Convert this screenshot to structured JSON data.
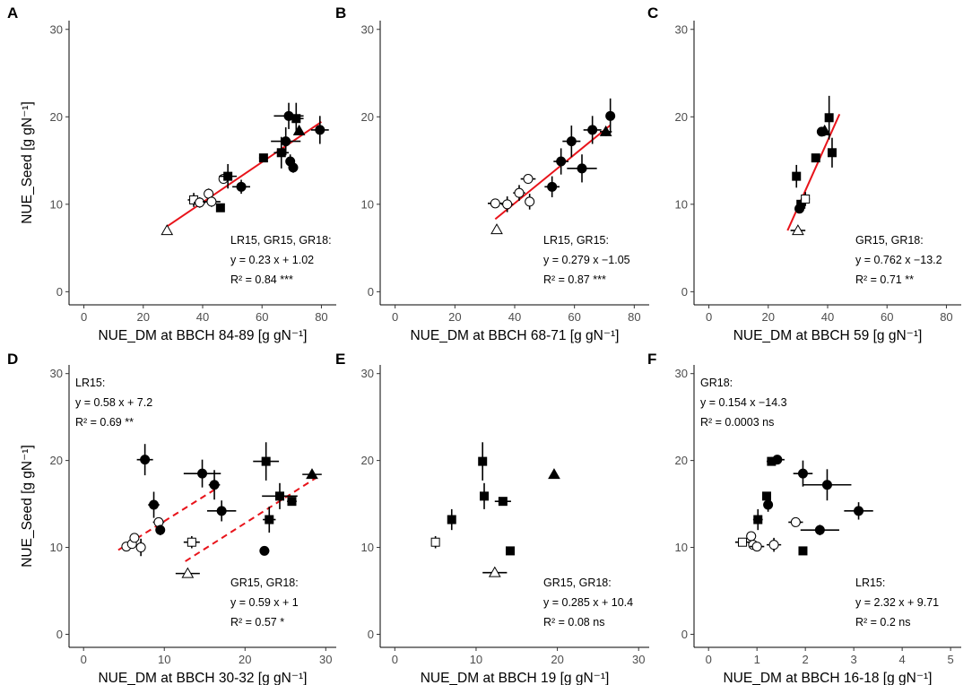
{
  "chart_data": [
    {
      "panel": "A",
      "type": "scatter",
      "xlabel": "NUE_DM at BBCH 84-89 [g gN⁻¹]",
      "ylabel": "NUE_Seed [g gN⁻¹]",
      "xlim": [
        -5,
        85
      ],
      "ylim": [
        -1.5,
        31
      ],
      "xticks": [
        0,
        20,
        40,
        60,
        80
      ],
      "yticks": [
        0,
        10,
        20,
        30
      ],
      "points": [
        {
          "x": 28,
          "y": 7.0,
          "xerr": 0,
          "yerr": 0,
          "shape": "triangle",
          "fill": "open"
        },
        {
          "x": 37,
          "y": 10.5,
          "xerr": 2,
          "yerr": 0.8,
          "shape": "square",
          "fill": "open"
        },
        {
          "x": 39,
          "y": 10.2,
          "xerr": 2,
          "yerr": 0.6,
          "shape": "circle",
          "fill": "open"
        },
        {
          "x": 42,
          "y": 11.2,
          "xerr": 1.5,
          "yerr": 0.6,
          "shape": "circle",
          "fill": "open"
        },
        {
          "x": 43,
          "y": 10.3,
          "xerr": 3,
          "yerr": 0.6,
          "shape": "circle",
          "fill": "open"
        },
        {
          "x": 46,
          "y": 9.6,
          "xerr": 1,
          "yerr": 0.4,
          "shape": "square",
          "fill": "filled"
        },
        {
          "x": 47,
          "y": 12.9,
          "xerr": 1.5,
          "yerr": 0.4,
          "shape": "circle",
          "fill": "open"
        },
        {
          "x": 48.5,
          "y": 13.2,
          "xerr": 3,
          "yerr": 1.4,
          "shape": "square",
          "fill": "filled"
        },
        {
          "x": 53,
          "y": 12.0,
          "xerr": 3,
          "yerr": 0.8,
          "shape": "circle",
          "fill": "filled"
        },
        {
          "x": 60.5,
          "y": 15.3,
          "xerr": 1.5,
          "yerr": 0.4,
          "shape": "square",
          "fill": "filled"
        },
        {
          "x": 66.5,
          "y": 15.9,
          "xerr": 2.5,
          "yerr": 1.8,
          "shape": "square",
          "fill": "filled"
        },
        {
          "x": 68,
          "y": 17.2,
          "xerr": 5,
          "yerr": 1.6,
          "shape": "circle",
          "fill": "filled"
        },
        {
          "x": 69,
          "y": 20.1,
          "xerr": 5,
          "yerr": 1.5,
          "shape": "circle",
          "fill": "filled"
        },
        {
          "x": 69.5,
          "y": 14.9,
          "xerr": 1.5,
          "yerr": 0.8,
          "shape": "circle",
          "fill": "filled"
        },
        {
          "x": 70.5,
          "y": 14.2,
          "xerr": 1.5,
          "yerr": 0.6,
          "shape": "circle",
          "fill": "filled"
        },
        {
          "x": 71.5,
          "y": 19.8,
          "xerr": 2.5,
          "yerr": 1.8,
          "shape": "square",
          "fill": "filled"
        },
        {
          "x": 72.5,
          "y": 18.4,
          "xerr": 1,
          "yerr": 0.5,
          "shape": "triangle",
          "fill": "filled"
        },
        {
          "x": 79.5,
          "y": 18.5,
          "xerr": 3,
          "yerr": 1.6,
          "shape": "circle",
          "fill": "filled"
        }
      ],
      "fit_lines": [
        {
          "x": [
            28,
            80
          ],
          "y": [
            7.46,
            19.42
          ],
          "style": "solid"
        }
      ],
      "annotations": [
        {
          "lines": [
            "LR15, GR15, GR18:",
            "y = 0.23 x + 1.02",
            "R² = 0.84 ***"
          ],
          "pos": [
            1,
            5
          ]
        }
      ]
    },
    {
      "panel": "B",
      "type": "scatter",
      "xlabel": "NUE_DM at BBCH 68-71 [g gN⁻¹]",
      "ylabel": "",
      "xlim": [
        -5,
        85
      ],
      "ylim": [
        -1.5,
        31
      ],
      "xticks": [
        0,
        20,
        40,
        60,
        80
      ],
      "yticks": [
        0,
        10,
        20,
        30
      ],
      "points": [
        {
          "x": 33.5,
          "y": 10.1,
          "xerr": 2.5,
          "yerr": 0.5,
          "shape": "circle",
          "fill": "open"
        },
        {
          "x": 34,
          "y": 7.1,
          "xerr": 0,
          "yerr": 0,
          "shape": "triangle",
          "fill": "open"
        },
        {
          "x": 37.5,
          "y": 10.0,
          "xerr": 2,
          "yerr": 0.9,
          "shape": "circle",
          "fill": "open"
        },
        {
          "x": 41.5,
          "y": 11.3,
          "xerr": 2,
          "yerr": 0.9,
          "shape": "circle",
          "fill": "open"
        },
        {
          "x": 44.5,
          "y": 12.9,
          "xerr": 2.5,
          "yerr": 0.5,
          "shape": "circle",
          "fill": "open"
        },
        {
          "x": 45,
          "y": 10.3,
          "xerr": 1.5,
          "yerr": 0.9,
          "shape": "circle",
          "fill": "open"
        },
        {
          "x": 52.5,
          "y": 12.0,
          "xerr": 2.5,
          "yerr": 1.2,
          "shape": "circle",
          "fill": "filled"
        },
        {
          "x": 55.5,
          "y": 14.9,
          "xerr": 2.5,
          "yerr": 1.5,
          "shape": "circle",
          "fill": "filled"
        },
        {
          "x": 59,
          "y": 17.2,
          "xerr": 3,
          "yerr": 1.8,
          "shape": "circle",
          "fill": "filled"
        },
        {
          "x": 62.5,
          "y": 14.1,
          "xerr": 5,
          "yerr": 1.6,
          "shape": "circle",
          "fill": "filled"
        },
        {
          "x": 66,
          "y": 18.5,
          "xerr": 3,
          "yerr": 1.6,
          "shape": "circle",
          "fill": "filled"
        },
        {
          "x": 70.5,
          "y": 18.3,
          "xerr": 2,
          "yerr": 0.5,
          "shape": "triangle",
          "fill": "filled"
        },
        {
          "x": 72,
          "y": 20.1,
          "xerr": 0.8,
          "yerr": 2,
          "shape": "circle",
          "fill": "filled"
        }
      ],
      "fit_lines": [
        {
          "x": [
            33.5,
            72
          ],
          "y": [
            8.3,
            19.04
          ],
          "style": "solid"
        }
      ],
      "annotations": [
        {
          "lines": [
            "LR15, GR15:",
            "y = 0.279 x −1.05",
            "R² = 0.87 ***"
          ],
          "pos": [
            1,
            5
          ]
        }
      ]
    },
    {
      "panel": "C",
      "type": "scatter",
      "xlabel": "NUE_DM at BBCH 59 [g gN⁻¹]",
      "ylabel": "",
      "xlim": [
        -5,
        85
      ],
      "ylim": [
        -1.5,
        31
      ],
      "xticks": [
        0,
        20,
        40,
        60,
        80
      ],
      "yticks": [
        0,
        10,
        20,
        30
      ],
      "points": [
        {
          "x": 29.5,
          "y": 13.2,
          "xerr": 0.5,
          "yerr": 1.3,
          "shape": "square",
          "fill": "filled"
        },
        {
          "x": 30,
          "y": 7.0,
          "xerr": 2.5,
          "yerr": 0.3,
          "shape": "triangle",
          "fill": "open"
        },
        {
          "x": 30.5,
          "y": 9.5,
          "xerr": 0.5,
          "yerr": 0.4,
          "shape": "circle",
          "fill": "filled"
        },
        {
          "x": 31,
          "y": 10.0,
          "xerr": 0.5,
          "yerr": 0.4,
          "shape": "square",
          "fill": "filled"
        },
        {
          "x": 32.5,
          "y": 10.6,
          "xerr": 1.5,
          "yerr": 0.8,
          "shape": "square",
          "fill": "open"
        },
        {
          "x": 36,
          "y": 15.3,
          "xerr": 0.8,
          "yerr": 0.4,
          "shape": "square",
          "fill": "filled"
        },
        {
          "x": 38,
          "y": 18.3,
          "xerr": 1,
          "yerr": 0.4,
          "shape": "circle",
          "fill": "filled"
        },
        {
          "x": 39,
          "y": 18.4,
          "xerr": 1,
          "yerr": 0.6,
          "shape": "triangle",
          "fill": "filled"
        },
        {
          "x": 40.5,
          "y": 19.9,
          "xerr": 1,
          "yerr": 2.5,
          "shape": "square",
          "fill": "filled"
        },
        {
          "x": 41.5,
          "y": 15.9,
          "xerr": 1,
          "yerr": 1.7,
          "shape": "square",
          "fill": "filled"
        }
      ],
      "fit_lines": [
        {
          "x": [
            26.5,
            44
          ],
          "y": [
            7.0,
            20.3
          ],
          "style": "solid"
        }
      ],
      "annotations": [
        {
          "lines": [
            "GR15, GR18:",
            "y = 0.762 x −13.2",
            "R² = 0.71 **"
          ],
          "pos": [
            1,
            5
          ]
        }
      ]
    },
    {
      "panel": "D",
      "type": "scatter",
      "xlabel": "NUE_DM at BBCH 30-32 [g gN⁻¹]",
      "ylabel": "NUE_Seed [g gN⁻¹]",
      "xlim": [
        -1.8,
        31.3
      ],
      "ylim": [
        -1.5,
        31
      ],
      "xticks": [
        0,
        10,
        20,
        30
      ],
      "yticks": [
        0,
        10,
        20,
        30
      ],
      "points": [
        {
          "x": 5.3,
          "y": 10.1,
          "xerr": 0.5,
          "yerr": 0.4,
          "shape": "circle",
          "fill": "open"
        },
        {
          "x": 6,
          "y": 10.4,
          "xerr": 0.4,
          "yerr": 0.5,
          "shape": "circle",
          "fill": "open"
        },
        {
          "x": 6.3,
          "y": 11.1,
          "xerr": 0.4,
          "yerr": 0.5,
          "shape": "circle",
          "fill": "open"
        },
        {
          "x": 7.1,
          "y": 10.0,
          "xerr": 0.5,
          "yerr": 1.0,
          "shape": "circle",
          "fill": "open"
        },
        {
          "x": 7.6,
          "y": 20.1,
          "xerr": 1,
          "yerr": 1.8,
          "shape": "circle",
          "fill": "filled"
        },
        {
          "x": 8.7,
          "y": 14.9,
          "xerr": 0.7,
          "yerr": 1.5,
          "shape": "circle",
          "fill": "filled"
        },
        {
          "x": 9.3,
          "y": 12.9,
          "xerr": 0.7,
          "yerr": 0.5,
          "shape": "circle",
          "fill": "open"
        },
        {
          "x": 9.5,
          "y": 12.0,
          "xerr": 0.5,
          "yerr": 0.6,
          "shape": "circle",
          "fill": "filled"
        },
        {
          "x": 12.9,
          "y": 7.0,
          "xerr": 1.5,
          "yerr": 0,
          "shape": "triangle",
          "fill": "open"
        },
        {
          "x": 13.4,
          "y": 10.6,
          "xerr": 1,
          "yerr": 0.7,
          "shape": "square",
          "fill": "open"
        },
        {
          "x": 14.7,
          "y": 18.5,
          "xerr": 2.3,
          "yerr": 1.6,
          "shape": "circle",
          "fill": "filled"
        },
        {
          "x": 16.2,
          "y": 17.2,
          "xerr": 0.7,
          "yerr": 1.7,
          "shape": "circle",
          "fill": "filled"
        },
        {
          "x": 17.1,
          "y": 14.2,
          "xerr": 1.8,
          "yerr": 1.2,
          "shape": "circle",
          "fill": "filled"
        },
        {
          "x": 22.4,
          "y": 9.6,
          "xerr": 0.6,
          "yerr": 0.3,
          "shape": "circle",
          "fill": "filled"
        },
        {
          "x": 22.6,
          "y": 19.9,
          "xerr": 1.6,
          "yerr": 2.2,
          "shape": "square",
          "fill": "filled"
        },
        {
          "x": 23,
          "y": 13.2,
          "xerr": 0.8,
          "yerr": 1.5,
          "shape": "square",
          "fill": "filled"
        },
        {
          "x": 24.3,
          "y": 15.9,
          "xerr": 2.2,
          "yerr": 1.5,
          "shape": "square",
          "fill": "filled"
        },
        {
          "x": 25.8,
          "y": 15.3,
          "xerr": 0.6,
          "yerr": 0.5,
          "shape": "square",
          "fill": "filled"
        },
        {
          "x": 28.3,
          "y": 18.4,
          "xerr": 1.2,
          "yerr": 0.3,
          "shape": "triangle",
          "fill": "filled"
        }
      ],
      "fit_lines": [
        {
          "x": [
            4.3,
            16.5
          ],
          "y": [
            9.7,
            16.8
          ],
          "style": "dashed"
        },
        {
          "x": 12.6,
          "y": 0,
          "style": "none"
        },
        {
          "x": [
            12.6,
            28.8
          ],
          "y": [
            8.4,
            18.0
          ],
          "style": "dashed"
        }
      ],
      "annotations": [
        {
          "lines": [
            "LR15:",
            "y = 0.58 x + 7.2",
            "R² = 0.69 **"
          ],
          "pos": [
            0,
            0
          ]
        },
        {
          "lines": [
            "GR15, GR18:",
            "y = 0.59 x + 1",
            "R² = 0.57 *"
          ],
          "pos": [
            1,
            5
          ]
        }
      ]
    },
    {
      "panel": "E",
      "type": "scatter",
      "xlabel": "NUE_DM at BBCH 19 [g gN⁻¹]",
      "ylabel": "",
      "xlim": [
        -1.8,
        31.3
      ],
      "ylim": [
        -1.5,
        31
      ],
      "xticks": [
        0,
        10,
        20,
        30
      ],
      "yticks": [
        0,
        10,
        20,
        30
      ],
      "points": [
        {
          "x": 5,
          "y": 10.6,
          "xerr": 0.3,
          "yerr": 0.7,
          "shape": "square",
          "fill": "open"
        },
        {
          "x": 7,
          "y": 13.2,
          "xerr": 0.5,
          "yerr": 1.2,
          "shape": "square",
          "fill": "filled"
        },
        {
          "x": 10.8,
          "y": 19.9,
          "xerr": 0.5,
          "yerr": 2.2,
          "shape": "square",
          "fill": "filled"
        },
        {
          "x": 11,
          "y": 15.9,
          "xerr": 0.5,
          "yerr": 1.5,
          "shape": "square",
          "fill": "filled"
        },
        {
          "x": 12.3,
          "y": 7.1,
          "xerr": 1.5,
          "yerr": 0,
          "shape": "triangle",
          "fill": "open"
        },
        {
          "x": 13.3,
          "y": 15.3,
          "xerr": 1,
          "yerr": 0.4,
          "shape": "square",
          "fill": "filled"
        },
        {
          "x": 14.2,
          "y": 9.6,
          "xerr": 0.5,
          "yerr": 0.3,
          "shape": "square",
          "fill": "filled"
        },
        {
          "x": 19.6,
          "y": 18.4,
          "xerr": 0.3,
          "yerr": 0.3,
          "shape": "triangle",
          "fill": "filled"
        }
      ],
      "fit_lines": [],
      "annotations": [
        {
          "lines": [
            "GR15, GR18:",
            "y = 0.285 x + 10.4",
            "R² = 0.08 ns"
          ],
          "pos": [
            1,
            5
          ]
        }
      ]
    },
    {
      "panel": "F",
      "type": "scatter",
      "xlabel": "NUE_DM at BBCH 16-18 [g gN⁻¹]",
      "ylabel": "",
      "xlim": [
        -0.3,
        5.22
      ],
      "ylim": [
        -1.5,
        31
      ],
      "xticks": [
        0,
        1,
        2,
        3,
        4,
        5
      ],
      "yticks": [
        0,
        10,
        20,
        30
      ],
      "points": [
        {
          "x": 0.7,
          "y": 10.6,
          "xerr": 0.15,
          "yerr": 0.4,
          "shape": "square",
          "fill": "open"
        },
        {
          "x": 0.88,
          "y": 11.3,
          "xerr": 0.1,
          "yerr": 0.5,
          "shape": "circle",
          "fill": "open"
        },
        {
          "x": 0.92,
          "y": 10.3,
          "xerr": 0.1,
          "yerr": 0.5,
          "shape": "circle",
          "fill": "open"
        },
        {
          "x": 1.0,
          "y": 10.1,
          "xerr": 0.15,
          "yerr": 0.5,
          "shape": "circle",
          "fill": "open"
        },
        {
          "x": 1.02,
          "y": 13.2,
          "xerr": 0.1,
          "yerr": 1.2,
          "shape": "square",
          "fill": "filled"
        },
        {
          "x": 1.2,
          "y": 15.9,
          "xerr": 0.05,
          "yerr": 0.5,
          "shape": "square",
          "fill": "filled"
        },
        {
          "x": 1.23,
          "y": 14.9,
          "xerr": 0.05,
          "yerr": 0.8,
          "shape": "circle",
          "fill": "filled"
        },
        {
          "x": 1.3,
          "y": 19.9,
          "xerr": 0.1,
          "yerr": 0.5,
          "shape": "square",
          "fill": "filled"
        },
        {
          "x": 1.35,
          "y": 10.3,
          "xerr": 0.15,
          "yerr": 0.8,
          "shape": "circle",
          "fill": "open"
        },
        {
          "x": 1.42,
          "y": 20.1,
          "xerr": 0.15,
          "yerr": 0.5,
          "shape": "circle",
          "fill": "filled"
        },
        {
          "x": 1.8,
          "y": 12.9,
          "xerr": 0.15,
          "yerr": 0.3,
          "shape": "circle",
          "fill": "open"
        },
        {
          "x": 1.95,
          "y": 18.5,
          "xerr": 0.2,
          "yerr": 1.5,
          "shape": "circle",
          "fill": "filled"
        },
        {
          "x": 1.95,
          "y": 9.6,
          "xerr": 0,
          "yerr": 0,
          "shape": "square",
          "fill": "filled"
        },
        {
          "x": 2.3,
          "y": 12.0,
          "xerr": 0.4,
          "yerr": 0.6,
          "shape": "circle",
          "fill": "filled"
        },
        {
          "x": 2.45,
          "y": 17.2,
          "xerr": 0.5,
          "yerr": 1.8,
          "shape": "circle",
          "fill": "filled"
        },
        {
          "x": 3.1,
          "y": 14.2,
          "xerr": 0.3,
          "yerr": 1.0,
          "shape": "circle",
          "fill": "filled"
        }
      ],
      "fit_lines": [],
      "annotations": [
        {
          "lines": [
            "GR18:",
            "y = 0.154 x −14.3",
            "R² = 0.0003 ns"
          ],
          "pos": [
            0,
            0
          ]
        },
        {
          "lines": [
            "LR15:",
            "y = 2.32 x + 9.71",
            "R² = 0.2 ns"
          ],
          "pos": [
            1,
            5
          ]
        }
      ]
    }
  ]
}
